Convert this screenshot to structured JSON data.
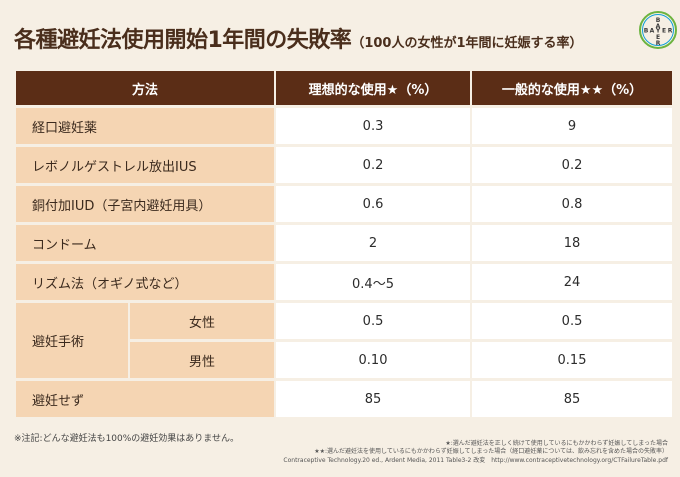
{
  "title": {
    "main": "各種避妊法使用開始1年間の失敗率",
    "sub": "（100人の女性が1年間に妊娠する率）"
  },
  "logo": {
    "text": "BAYER",
    "colors": {
      "cross": "#6cb33f",
      "ring": "#10a0d8"
    }
  },
  "table": {
    "headers": {
      "method": "方法",
      "ideal": "理想的な使用★（%）",
      "typical": "一般的な使用★★（%）"
    },
    "rows": [
      {
        "method": "経口避妊薬",
        "ideal": "0.3",
        "typical": "9"
      },
      {
        "method": "レボノルゲストレル放出IUS",
        "ideal": "0.2",
        "typical": "0.2"
      },
      {
        "method": "銅付加IUD（子宮内避妊用具）",
        "ideal": "0.6",
        "typical": "0.8"
      },
      {
        "method": "コンドーム",
        "ideal": "2",
        "typical": "18"
      },
      {
        "method": "リズム法（オギノ式など）",
        "ideal": "0.4〜5",
        "typical": "24"
      }
    ],
    "surgery": {
      "method": "避妊手術",
      "female": {
        "label": "女性",
        "ideal": "0.5",
        "typical": "0.5"
      },
      "male": {
        "label": "男性",
        "ideal": "0.10",
        "typical": "0.15"
      }
    },
    "none": {
      "method": "避妊せず",
      "ideal": "85",
      "typical": "85"
    }
  },
  "notes": {
    "left": "※注記:どんな避妊法も100%の避妊効果はありません。",
    "star1": "★:選んだ避妊法を正しく続けて使用しているにもかかわらず妊娠してしまった場合",
    "star2": "★★:選んだ避妊法を使用しているにもかかわらず妊娠してしまった場合（経口避妊薬については、飲み忘れを含めた場合の失敗率）",
    "source": "Contraceptive Technology.20 ed., Ardent Media, 2011 Table3-2 改変　http://www.contraceptivetechnology.org/CTFailureTable.pdf"
  }
}
